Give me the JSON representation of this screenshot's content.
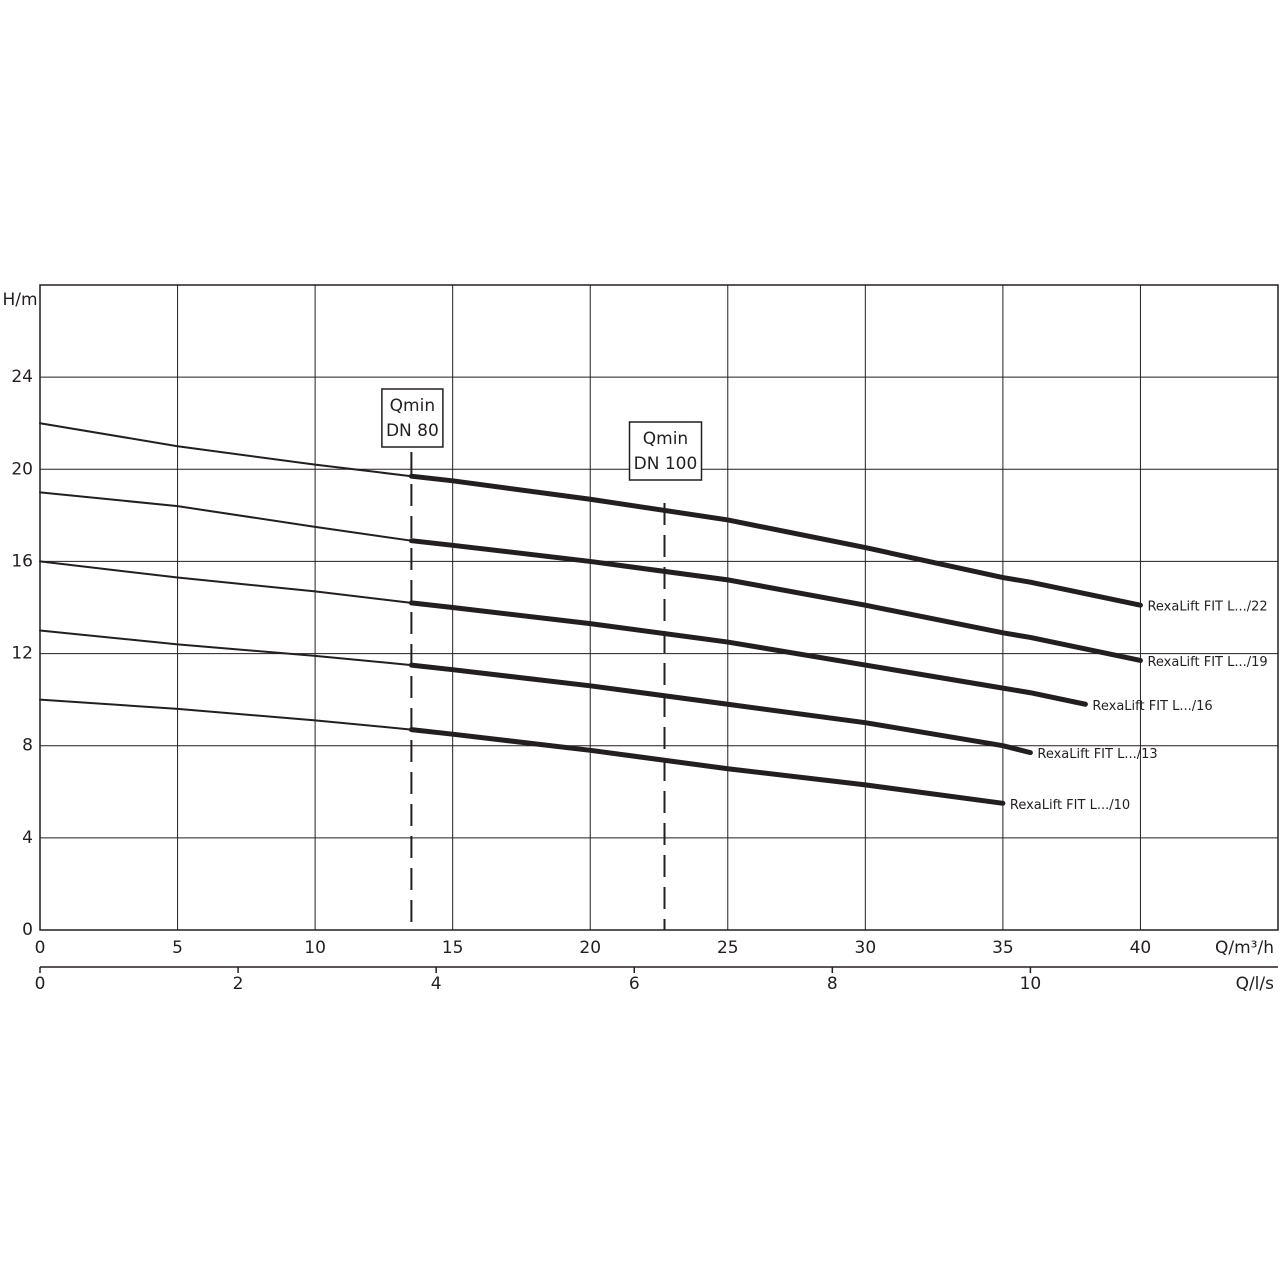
{
  "chart_data": {
    "type": "line",
    "ylabel": "H/m",
    "xlabel": "Q/m³/h",
    "x2label": "Q/l/s",
    "x": [
      0,
      5,
      10,
      13.5,
      15,
      20,
      25,
      30,
      35,
      36,
      38,
      40
    ],
    "series": [
      {
        "name": "RexaLift FIT L.../22",
        "color": "#231f20",
        "values": [
          22.0,
          21.0,
          20.2,
          19.7,
          19.5,
          18.7,
          17.8,
          16.6,
          15.3,
          15.1,
          14.6,
          14.1
        ]
      },
      {
        "name": "RexaLift FIT L.../19",
        "color": "#231f20",
        "values": [
          19.0,
          18.4,
          17.5,
          16.9,
          16.7,
          16.0,
          15.2,
          14.1,
          12.9,
          12.7,
          12.2,
          11.7
        ]
      },
      {
        "name": "RexaLift FIT L.../16",
        "color": "#231f20",
        "values": [
          16.0,
          15.3,
          14.7,
          14.2,
          14.0,
          13.3,
          12.5,
          11.5,
          10.5,
          10.3,
          9.8,
          null
        ]
      },
      {
        "name": "RexaLift FIT L.../13",
        "color": "#231f20",
        "values": [
          13.0,
          12.4,
          11.9,
          11.5,
          11.3,
          10.6,
          9.8,
          9.0,
          8.0,
          7.7,
          null,
          null
        ]
      },
      {
        "name": "RexaLift FIT L.../10",
        "color": "#231f20",
        "values": [
          10.0,
          9.6,
          9.1,
          8.7,
          8.5,
          7.8,
          7.0,
          6.3,
          5.5,
          null,
          null,
          null
        ]
      }
    ],
    "annotations": [
      {
        "x": 13.5,
        "text": [
          "Qmin",
          "DN 80"
        ]
      },
      {
        "x": 22.7,
        "text": [
          "Qmin",
          "DN 100"
        ]
      }
    ],
    "xlim": [
      0,
      45
    ],
    "xticks": [
      0,
      5,
      10,
      15,
      20,
      25,
      30,
      35,
      40
    ],
    "ylim": [
      0,
      28
    ],
    "yticks": [
      0,
      4,
      8,
      12,
      16,
      20,
      24
    ],
    "x2lim": [
      0,
      12.5
    ],
    "x2ticks": [
      0,
      2,
      4,
      6,
      8,
      10
    ],
    "grid": true
  }
}
